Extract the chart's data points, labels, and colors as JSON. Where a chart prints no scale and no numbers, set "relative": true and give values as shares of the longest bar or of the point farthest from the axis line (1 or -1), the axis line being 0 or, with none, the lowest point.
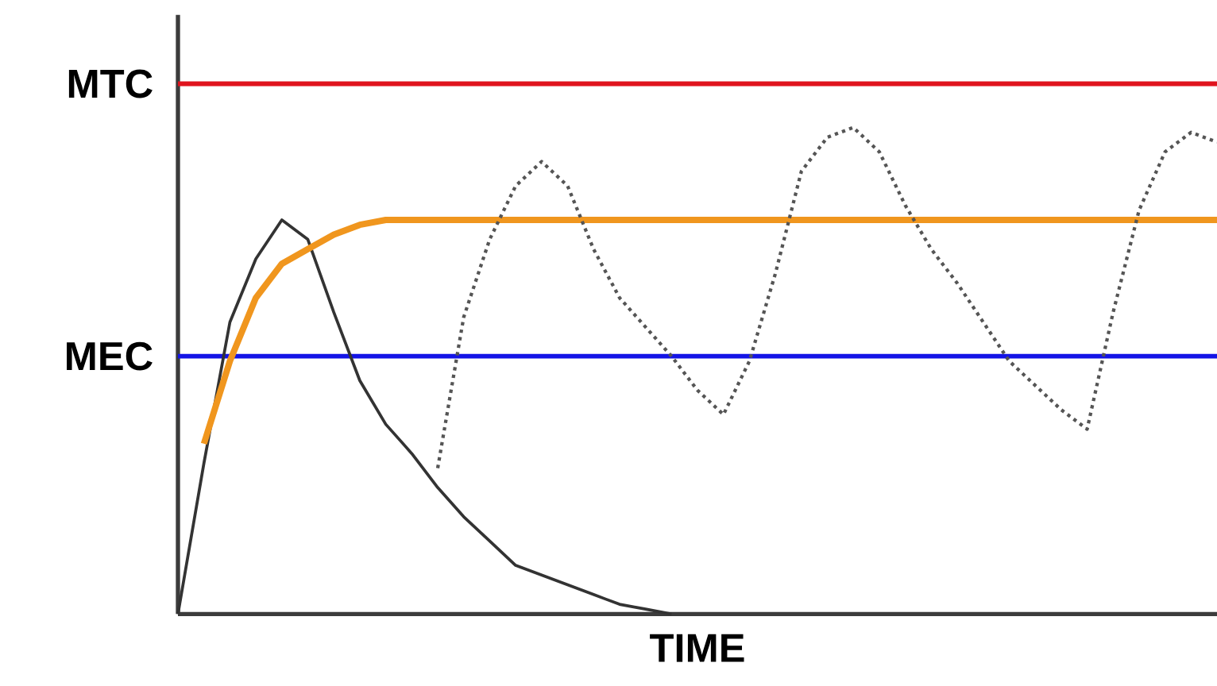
{
  "chart_data": {
    "type": "line",
    "relative": true,
    "xlabel": "TIME",
    "categories": [
      null,
      null,
      null,
      null,
      null,
      null,
      null,
      null,
      null,
      null,
      null,
      null,
      null,
      null,
      null,
      null,
      null,
      null,
      null,
      null,
      null,
      null,
      null,
      null,
      null,
      null,
      null,
      null,
      null,
      null,
      null,
      null,
      null,
      null,
      null,
      null,
      null,
      null,
      null,
      null,
      null
    ],
    "series": [
      {
        "color": "#333333",
        "line_style": "solid",
        "values": [
          0,
          0.31,
          0.6,
          0.73,
          0.81,
          0.77,
          0.62,
          0.48,
          0.39,
          0.33,
          0.26,
          0.2,
          0.15,
          0.1,
          0.08,
          0.06,
          0.04,
          0.02,
          0.01,
          0,
          null,
          null,
          null,
          null,
          null,
          null,
          null,
          null,
          null,
          null,
          null,
          null,
          null,
          null,
          null,
          null,
          null,
          null,
          null,
          null,
          null
        ]
      },
      {
        "color": "#f0961e",
        "line_style": "solid",
        "values": [
          null,
          0.35,
          0.52,
          0.65,
          0.72,
          0.75,
          0.78,
          0.8,
          0.81,
          0.81,
          0.81,
          0.81,
          0.81,
          0.81,
          0.81,
          0.81,
          0.81,
          0.81,
          0.81,
          0.81,
          0.81,
          0.81,
          0.81,
          0.81,
          0.81,
          0.81,
          0.81,
          0.81,
          0.81,
          0.81,
          0.81,
          0.81,
          0.81,
          0.81,
          0.81,
          0.81,
          0.81,
          0.81,
          0.81,
          0.81,
          0.81
        ]
      },
      {
        "color": "#555555",
        "line_style": "dotted",
        "values": [
          null,
          null,
          null,
          null,
          null,
          null,
          null,
          null,
          null,
          null,
          0.3,
          0.61,
          0.77,
          0.88,
          0.93,
          0.88,
          0.75,
          0.65,
          0.59,
          0.53,
          0.46,
          0.41,
          0.52,
          0.7,
          0.91,
          0.98,
          1,
          0.95,
          0.84,
          0.75,
          0.68,
          0.6,
          0.52,
          0.47,
          0.42,
          0.38,
          0.62,
          0.83,
          0.95,
          0.99,
          0.97
        ]
      }
    ],
    "ref_lines": [
      {
        "axis": "y",
        "value": 1.09,
        "label": "MTC",
        "color": "#e0141e"
      },
      {
        "axis": "y",
        "value": 0.53,
        "label": "MEC",
        "color": "#1414e6"
      }
    ],
    "marker": "none"
  }
}
